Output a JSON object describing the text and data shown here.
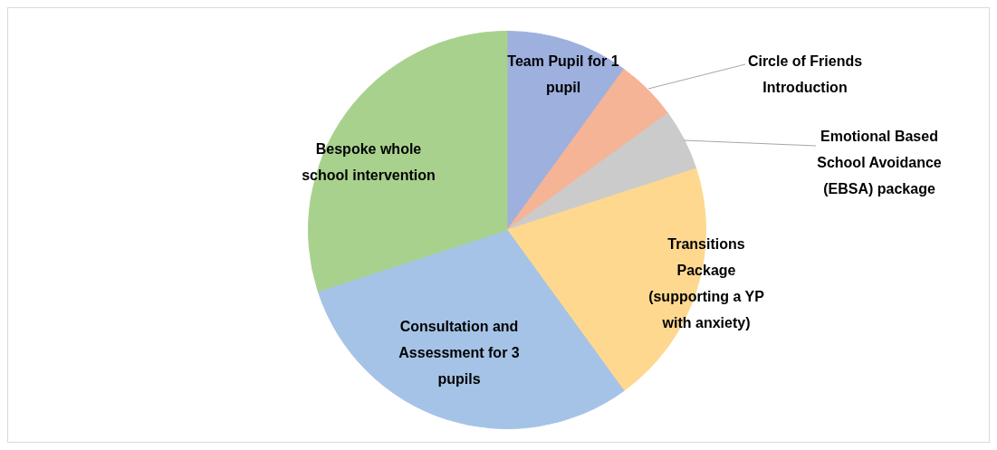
{
  "chart_data": {
    "type": "pie",
    "categories": [
      "Team Pupil for 1 pupil",
      "Circle of Friends Introduction",
      "Emotional Based School Avoidance (EBSA) package",
      "Transitions Package (supporting a YP with anxiety)",
      "Consultation and Assessment for 3 pupils",
      "Bespoke whole school intervention"
    ],
    "values": [
      10,
      5,
      5,
      20,
      30,
      30
    ],
    "colors": [
      "#9db0de",
      "#f5b496",
      "#cbcbcb",
      "#fed88f",
      "#a5c3e6",
      "#a9d18e"
    ],
    "legend": false
  }
}
